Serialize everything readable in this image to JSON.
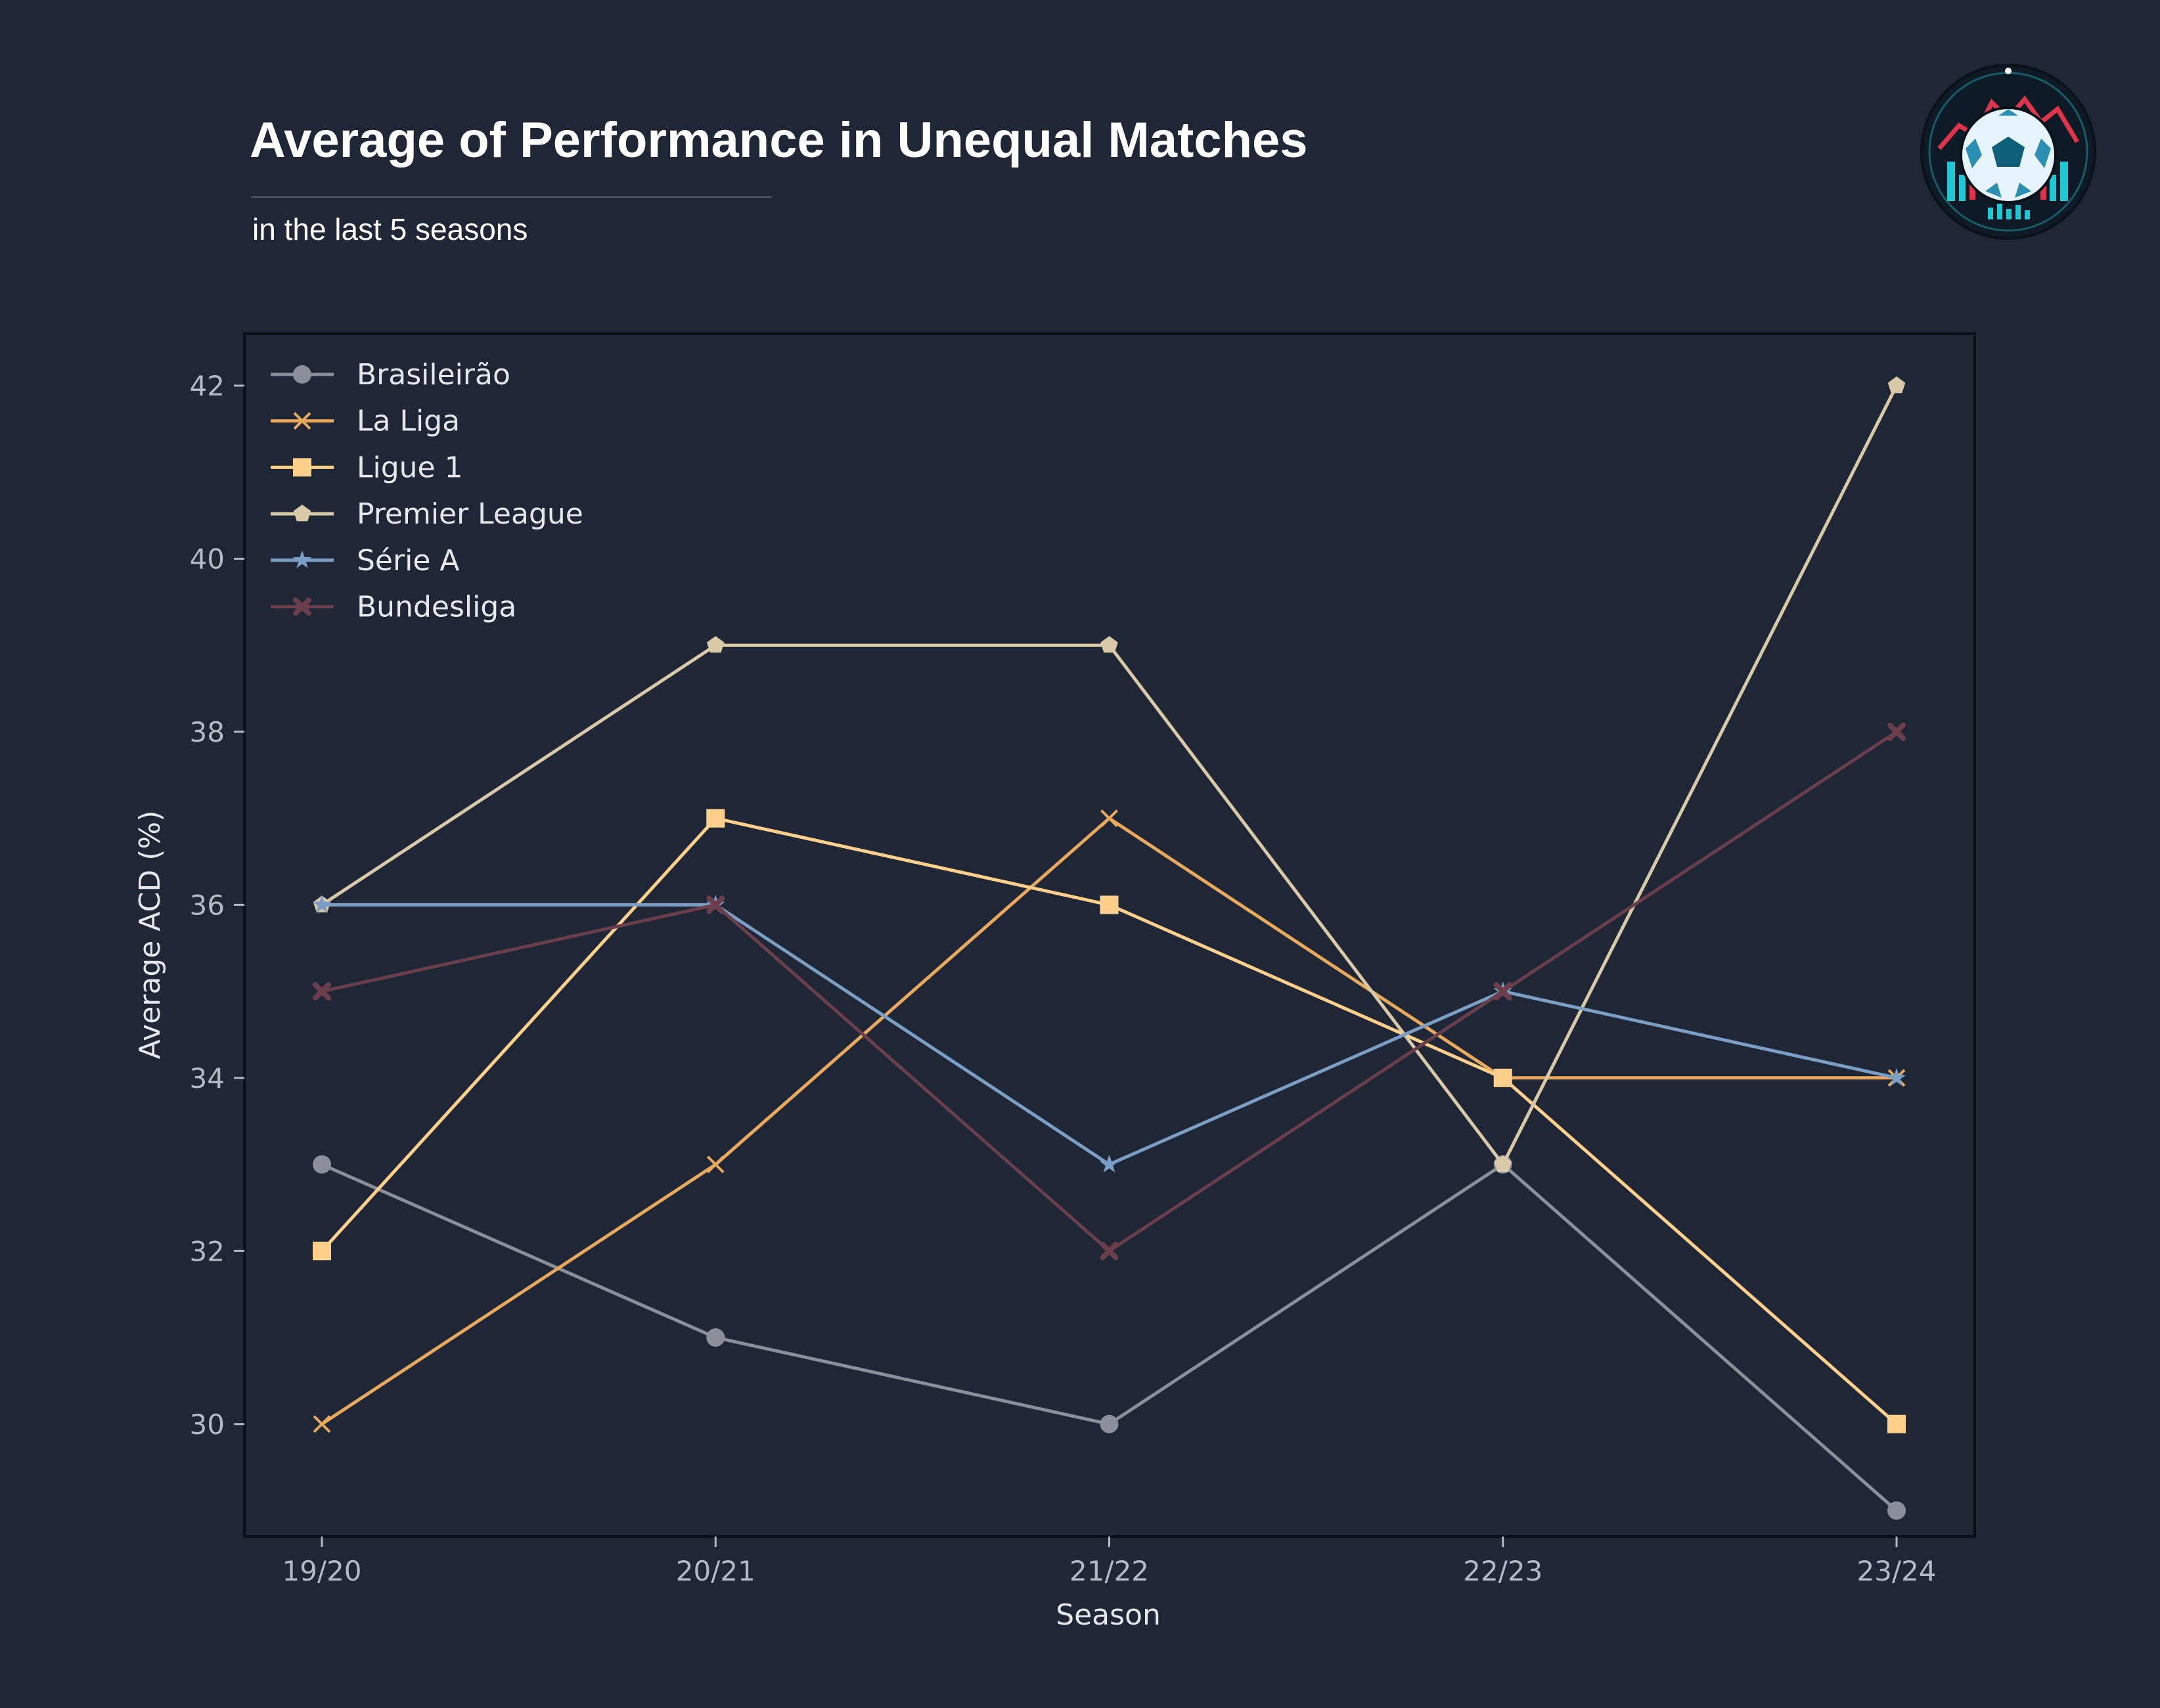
{
  "header": {
    "title": "Average of Performance in Unequal Matches",
    "subtitle": "in the last 5 seasons"
  },
  "logo": {
    "icon": "soccer-ball-logo-icon"
  },
  "colors": {
    "background": "#1f2736",
    "axis_text": "#b4bac4",
    "label_text": "#e6e8ec",
    "frame": "#0b0f16"
  },
  "chart_data": {
    "type": "line",
    "x": [
      "19/20",
      "20/21",
      "21/22",
      "22/23",
      "23/24"
    ],
    "xlabel": "Season",
    "ylabel": "Average ACD (%)",
    "ylim": [
      28.7,
      42.6
    ],
    "yticks": [
      30,
      32,
      34,
      36,
      38,
      40,
      42
    ],
    "grid": false,
    "legend_position": "top-left",
    "series": [
      {
        "name": "Brasileirão",
        "values": [
          33,
          31,
          30,
          33,
          29
        ],
        "color": "#8a8f9a",
        "marker": "circle"
      },
      {
        "name": "La Liga",
        "values": [
          30,
          33,
          37,
          34,
          34
        ],
        "color": "#e9a95c",
        "marker": "x"
      },
      {
        "name": "Ligue 1",
        "values": [
          32,
          37,
          36,
          34,
          30
        ],
        "color": "#ffd08c",
        "marker": "square"
      },
      {
        "name": "Premier League",
        "values": [
          36,
          39,
          39,
          33,
          42
        ],
        "color": "#d9c9a8",
        "marker": "pentagon"
      },
      {
        "name": "Série A",
        "values": [
          36,
          36,
          33,
          35,
          34
        ],
        "color": "#7b9ec4",
        "marker": "star"
      },
      {
        "name": "Bundesliga",
        "values": [
          35,
          36,
          32,
          35,
          38
        ],
        "color": "#6a3f4b",
        "marker": "filled-x"
      }
    ]
  }
}
